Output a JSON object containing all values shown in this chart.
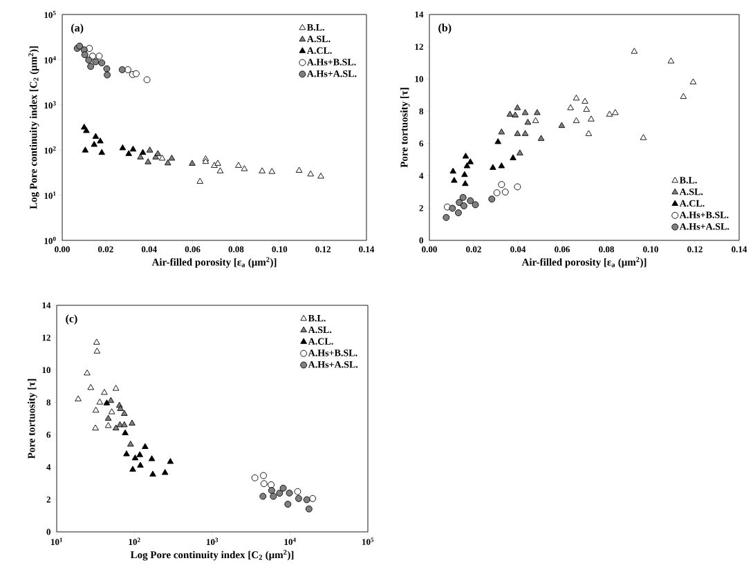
{
  "chart_data": [
    {
      "type": "scatter",
      "title": "(a)",
      "xlabel": "Air-filled porosity [ε$_{a}$ (μm$^{2}$)]",
      "ylabel": "Log Pore continuity index [C$_{2}$ (μm$^{2}$)]",
      "log": "y",
      "legend": "top right",
      "xlim": [
        0,
        0.14
      ],
      "xticks": [
        {
          "value": 0,
          "label": "0.00"
        },
        {
          "value": 0.02,
          "label": "0.02"
        },
        {
          "value": 0.04,
          "label": "0.04"
        },
        {
          "value": 0.06,
          "label": "0.06"
        },
        {
          "value": 0.08,
          "label": "0.08"
        },
        {
          "value": 0.1,
          "label": "0.10"
        },
        {
          "value": 0.12,
          "label": "0.12"
        },
        {
          "value": 0.14,
          "label": "0.14"
        }
      ],
      "ylim": [
        1,
        100000
      ],
      "yticks": [
        {
          "value": 1,
          "label": "10$^{0}$"
        },
        {
          "value": 10,
          "label": "10$^{1}$"
        },
        {
          "value": 100,
          "label": "10$^{2}$"
        },
        {
          "value": 1000,
          "label": "10$^{3}$"
        },
        {
          "value": 10000,
          "label": "10$^{4}$"
        },
        {
          "value": 100000,
          "label": "10$^{5}$"
        }
      ],
      "series": [
        {
          "name": "B.L.",
          "color": "#ffffff",
          "marker": "triangle",
          "x": [
            0.046,
            0.0634,
            0.066,
            0.066,
            0.07,
            0.0716,
            0.0727,
            0.0811,
            0.0838,
            0.092,
            0.0965,
            0.109,
            0.1143,
            0.119
          ],
          "values": [
            65,
            20,
            63,
            55,
            45,
            50,
            34,
            45,
            38,
            34,
            33,
            35,
            29,
            26
          ]
        },
        {
          "name": "A.SL.",
          "color": "#808080",
          "marker": "triangle",
          "x": [
            0.036,
            0.0371,
            0.0395,
            0.0403,
            0.043,
            0.044,
            0.0486,
            0.0504,
            0.0598
          ],
          "values": [
            69,
            null,
            54,
            98,
            69,
            82,
            51,
            65,
            50
          ]
        },
        {
          "name": "A.CL.",
          "color": "#000000",
          "marker": "triangle",
          "x": [
            0.0101,
            0.0106,
            0.0111,
            0.0147,
            0.0154,
            0.0175,
            0.0182,
            0.0278,
            0.0306,
            0.0326,
            0.0371
          ],
          "values": [
            316,
            98,
            265,
            131,
            197,
            156,
            87,
            110,
            82,
            103,
            87
          ]
        },
        {
          "name": "A.Hs+B.SL.",
          "color": "#ffffff",
          "marker": "circle",
          "x": [
            0.0125,
            0.014,
            0.017,
            0.0302,
            0.0324,
            0.034,
            0.039
          ],
          "values": [
            17800,
            12000,
            12000,
            6000,
            4700,
            4900,
            3600
          ]
        },
        {
          "name": "A.Hs+A.SL.",
          "color": "#808080",
          "marker": "circle",
          "x": [
            0.0069,
            0.008,
            0.0101,
            0.0104,
            0.0122,
            0.0131,
            0.0154,
            0.0182,
            0.0205,
            0.0207,
            0.0276
          ],
          "values": [
            17800,
            20000,
            16500,
            12900,
            9800,
            7100,
            9000,
            8500,
            6300,
            4600,
            6000
          ]
        }
      ]
    },
    {
      "type": "scatter",
      "title": "(b)",
      "xlabel": "Air-filled porosity [ε$_{a}$ (μm$^{2}$)]",
      "ylabel": "Pore tortuosity [τ]",
      "legend": "bottom right",
      "xlim": [
        0,
        0.14
      ],
      "xticks": [
        {
          "value": 0,
          "label": "0.00"
        },
        {
          "value": 0.02,
          "label": "0.02"
        },
        {
          "value": 0.04,
          "label": "0.04"
        },
        {
          "value": 0.06,
          "label": "0.06"
        },
        {
          "value": 0.08,
          "label": "0.08"
        },
        {
          "value": 0.1,
          "label": "0.10"
        },
        {
          "value": 0.12,
          "label": "0.12"
        },
        {
          "value": 0.14,
          "label": "0.14"
        }
      ],
      "ylim": [
        0,
        14
      ],
      "yticks": [
        0,
        2,
        4,
        6,
        8,
        10,
        12,
        14
      ],
      "series": [
        {
          "name": "B.L.",
          "color": "#ffffff",
          "marker": "triangle",
          "x": [
            0.048,
            0.0638,
            0.0664,
            0.0664,
            0.0703,
            0.071,
            0.072,
            0.0731,
            0.0814,
            0.084,
            0.0926,
            0.0967,
            0.1092,
            0.1148,
            0.1192
          ],
          "values": [
            7.4,
            8.2,
            8.8,
            7.4,
            8.6,
            8.1,
            6.6,
            7.5,
            7.8,
            7.9,
            11.7,
            6.35,
            11.1,
            8.9,
            9.8
          ]
        },
        {
          "name": "A.SL.",
          "color": "#808080",
          "marker": "triangle",
          "x": [
            0.0326,
            0.0364,
            0.0388,
            0.0398,
            0.0398,
            0.0409,
            0.0433,
            0.0433,
            0.0445,
            0.0487,
            0.0505,
            0.0598
          ],
          "values": [
            6.7,
            7.8,
            7.75,
            8.2,
            6.6,
            5.4,
            7.9,
            6.6,
            7.3,
            7.9,
            6.3,
            7.1
          ]
        },
        {
          "name": "A.CL.",
          "color": "#000000",
          "marker": "triangle",
          "x": [
            0.0107,
            0.0112,
            0.0159,
            0.0162,
            0.0164,
            0.017,
            0.0185,
            0.0287,
            0.031,
            0.0326,
            0.0378
          ],
          "values": [
            4.27,
            3.7,
            4.06,
            3.5,
            5.2,
            4.6,
            4.85,
            4.5,
            6.1,
            4.6,
            5.1
          ]
        },
        {
          "name": "A.Hs+B.SL.",
          "color": "#ffffff",
          "marker": "circle",
          "x": [
            0.0081,
            0.0159,
            0.0305,
            0.0326,
            0.0343,
            0.0398
          ],
          "values": [
            2.07,
            null,
            2.95,
            3.46,
            3.0,
            3.32
          ]
        },
        {
          "name": "A.Hs+A.SL.",
          "color": "#808080",
          "marker": "circle",
          "x": [
            0.0076,
            0.0104,
            0.0131,
            0.0135,
            0.0152,
            0.0156,
            0.0185,
            0.0208,
            0.0282
          ],
          "values": [
            1.42,
            1.99,
            1.71,
            2.35,
            2.66,
            2.14,
            2.46,
            2.21,
            2.56
          ]
        }
      ]
    },
    {
      "type": "scatter",
      "title": "(c)",
      "xlabel": "Log Pore continuity index [C$_{2}$ (μm$^{2}$)]",
      "ylabel": "Pore tortuosity [τ]",
      "log": "x",
      "legend": "top right",
      "xlim": [
        10,
        100000
      ],
      "xticks": [
        {
          "value": 10,
          "label": "10$^{1}$"
        },
        {
          "value": 100,
          "label": "10$^{2}$"
        },
        {
          "value": 1000,
          "label": "10$^{3}$"
        },
        {
          "value": 10000,
          "label": "10$^{4}$"
        },
        {
          "value": 100000,
          "label": "10$^{5}$"
        }
      ],
      "ylim": [
        0,
        14
      ],
      "yticks": [
        0,
        2,
        4,
        6,
        8,
        10,
        12,
        14
      ],
      "series": [
        {
          "name": "B.L.",
          "color": "#ffffff",
          "marker": "triangle",
          "x": [
            18.9,
            24.6,
            27.4,
            31.5,
            31.9,
            32.6,
            33,
            35.8,
            41,
            46,
            51,
            57.7
          ],
          "values": [
            8.2,
            9.8,
            8.9,
            6.4,
            7.5,
            11.7,
            11.15,
            8.0,
            8.6,
            6.55,
            7.4,
            8.85
          ]
        },
        {
          "name": "A.SL.",
          "color": "#808080",
          "marker": "triangle",
          "x": [
            46,
            49.7,
            57.7,
            64,
            65,
            66,
            74,
            74,
            89,
            93
          ],
          "values": [
            7.0,
            8.1,
            6.4,
            7.8,
            6.6,
            7.6,
            7.3,
            6.6,
            5.4,
            6.7
          ]
        },
        {
          "name": "A.CL.",
          "color": "#000000",
          "marker": "triangle",
          "x": [
            44,
            76,
            79,
            95,
            102,
            117,
            119,
            137,
            167,
            172,
            247,
            289
          ],
          "values": [
            7.95,
            6.1,
            4.8,
            3.85,
            4.55,
            4.75,
            4.1,
            5.25,
            4.5,
            3.55,
            3.65,
            4.33
          ]
        },
        {
          "name": "A.Hs+B.SL.",
          "color": "#ffffff",
          "marker": "circle",
          "x": [
            3530,
            4550,
            4620,
            5700,
            11300,
            12500,
            17500,
            19500
          ],
          "values": [
            3.34,
            3.48,
            2.98,
            2.91,
            null,
            2.49,
            null,
            2.06
          ]
        },
        {
          "name": "A.Hs+A.SL.",
          "color": "#808080",
          "marker": "circle",
          "x": [
            4480,
            5800,
            6100,
            7330,
            8160,
            9370,
            9800,
            12900,
            16400,
            17500
          ],
          "values": [
            2.2,
            2.56,
            2.2,
            2.39,
            2.7,
            1.71,
            2.4,
            2.06,
            1.99,
            1.42
          ]
        }
      ]
    }
  ]
}
